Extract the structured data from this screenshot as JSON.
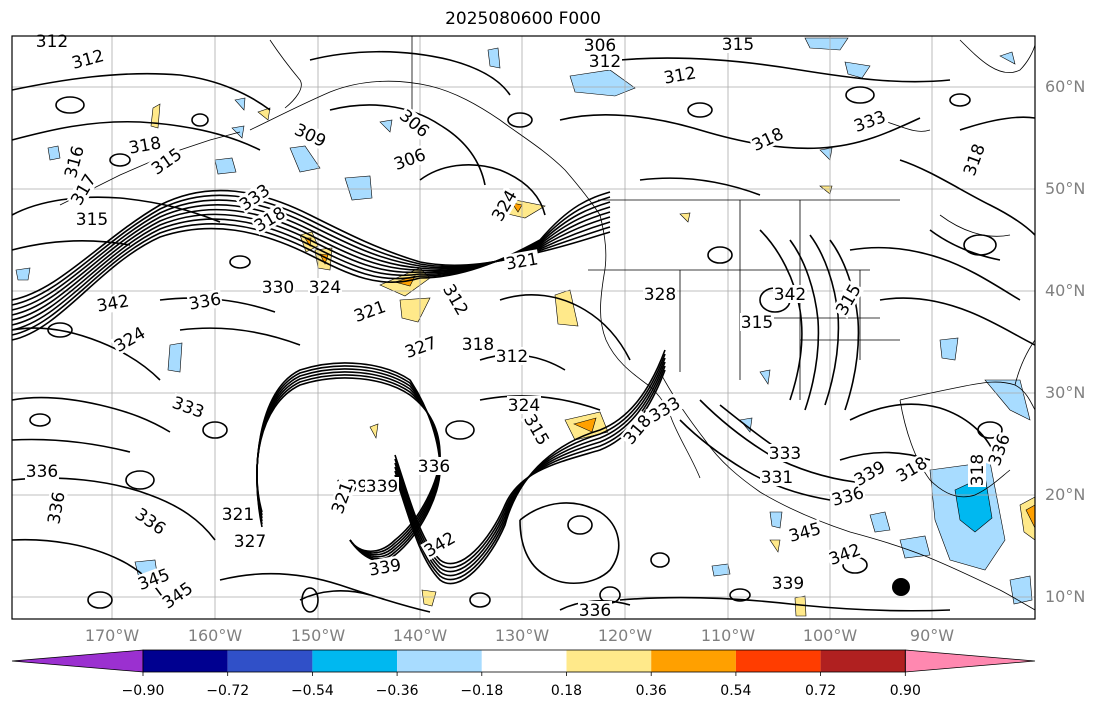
{
  "title": "2025080600 F000",
  "lat_labels": [
    "60°N",
    "50°N",
    "40°N",
    "30°N",
    "20°N",
    "10°N"
  ],
  "lon_labels": [
    "170°W",
    "160°W",
    "150°W",
    "140°W",
    "130°W",
    "120°W",
    "110°W",
    "100°W",
    "90°W"
  ],
  "colorbar": {
    "colors": [
      "#9b30d0",
      "#000090",
      "#3050c8",
      "#00b8f0",
      "#a8dcff",
      "#ffffff",
      "#ffe98a",
      "#ffa000",
      "#ff3d00",
      "#b02020",
      "#ff88b0"
    ],
    "tick_labels": [
      "−0.90",
      "−0.72",
      "−0.54",
      "−0.36",
      "−0.18",
      "0.18",
      "0.36",
      "0.54",
      "0.72",
      "0.90"
    ]
  },
  "contour_labels": [
    "312",
    "312",
    "306",
    "312",
    "315",
    "312",
    "318",
    "309",
    "306",
    "306",
    "315",
    "318",
    "333",
    "324",
    "318",
    "316",
    "317",
    "315",
    "333",
    "321",
    "318",
    "342",
    "336",
    "330",
    "324",
    "321",
    "312",
    "327",
    "318",
    "312",
    "324",
    "333",
    "324",
    "315",
    "318",
    "336",
    "336",
    "336",
    "345",
    "321",
    "327",
    "339",
    "339",
    "336",
    "342",
    "339",
    "336",
    "345",
    "321",
    "331",
    "333",
    "336",
    "342",
    "339",
    "336",
    "339",
    "318",
    "333",
    "342",
    "315",
    "318",
    "345",
    "328",
    "315"
  ],
  "features": {
    "cyclone_marker": "tropical-cyclone-dot"
  }
}
